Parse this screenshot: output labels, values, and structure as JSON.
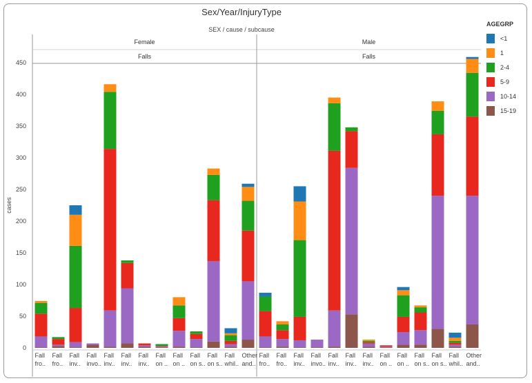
{
  "chart_data": {
    "type": "bar",
    "title": "Sex/Year/InjuryType",
    "subtitle": "SEX  /  cause  /  subcause",
    "ylabel": "cases",
    "ylim": [
      0,
      475
    ],
    "yticks": [
      0,
      50,
      100,
      150,
      200,
      250,
      300,
      350,
      400,
      450
    ],
    "legend_title": "AGEGRP",
    "legend_position": "right",
    "stack_order": [
      "15-19",
      "10-14",
      "5-9",
      "2-4",
      "1",
      "<1"
    ],
    "series": [
      {
        "name": "<1",
        "color": "#1f77b4"
      },
      {
        "name": "1",
        "color": "#ff8c14"
      },
      {
        "name": "2-4",
        "color": "#1fa01f"
      },
      {
        "name": "5-9",
        "color": "#e8281e"
      },
      {
        "name": "10-14",
        "color": "#9b68c4"
      },
      {
        "name": "15-19",
        "color": "#8c564b"
      }
    ],
    "panels": [
      {
        "sex": "Female",
        "cause": "Falls",
        "bars": [
          {
            "label": [
              "Fall",
              "fro.."
            ],
            "values": {
              "15-19": 1,
              "10-14": 17,
              "5-9": 36,
              "2-4": 17,
              "1": 3,
              "<1": 0
            }
          },
          {
            "label": [
              "Fall",
              "fro.."
            ],
            "values": {
              "15-19": 3,
              "10-14": 2,
              "5-9": 9,
              "2-4": 3,
              "1": 0,
              "<1": 0
            }
          },
          {
            "label": [
              "Fall",
              "inv.."
            ],
            "values": {
              "15-19": 1,
              "10-14": 8,
              "5-9": 54,
              "2-4": 98,
              "1": 49,
              "<1": 15
            }
          },
          {
            "label": [
              "Fall",
              "invo.."
            ],
            "values": {
              "15-19": 5,
              "10-14": 2,
              "5-9": 0,
              "2-4": 0,
              "1": 0,
              "<1": 0
            }
          },
          {
            "label": [
              "Fall",
              "inv.."
            ],
            "values": {
              "15-19": 2,
              "10-14": 57,
              "5-9": 255,
              "2-4": 90,
              "1": 12,
              "<1": 0
            }
          },
          {
            "label": [
              "Fall",
              "inv.."
            ],
            "values": {
              "15-19": 7,
              "10-14": 87,
              "5-9": 40,
              "2-4": 4,
              "1": 0,
              "<1": 0
            }
          },
          {
            "label": [
              "Fall",
              "inv.."
            ],
            "values": {
              "15-19": 2,
              "10-14": 2,
              "5-9": 3,
              "2-4": 0,
              "1": 0,
              "<1": 0
            }
          },
          {
            "label": [
              "Fall",
              "on .."
            ],
            "values": {
              "15-19": 1,
              "10-14": 1,
              "5-9": 1,
              "2-4": 3,
              "1": 0,
              "<1": 0
            }
          },
          {
            "label": [
              "Fall",
              "on .."
            ],
            "values": {
              "15-19": 2,
              "10-14": 25,
              "5-9": 20,
              "2-4": 20,
              "1": 13,
              "<1": 0
            }
          },
          {
            "label": [
              "Fall",
              "on s.."
            ],
            "values": {
              "15-19": 1,
              "10-14": 13,
              "5-9": 8,
              "2-4": 4,
              "1": 0,
              "<1": 0
            }
          },
          {
            "label": [
              "Fall",
              "on s.."
            ],
            "values": {
              "15-19": 10,
              "10-14": 127,
              "5-9": 96,
              "2-4": 40,
              "1": 10,
              "<1": 0
            }
          },
          {
            "label": [
              "Fall",
              "whil.."
            ],
            "values": {
              "15-19": 2,
              "10-14": 4,
              "5-9": 5,
              "2-4": 9,
              "1": 3,
              "<1": 8
            }
          },
          {
            "label": [
              "Other",
              "and.."
            ],
            "values": {
              "15-19": 13,
              "10-14": 92,
              "5-9": 80,
              "2-4": 47,
              "1": 22,
              "<1": 5
            }
          }
        ]
      },
      {
        "sex": "Male",
        "cause": "Falls",
        "bars": [
          {
            "label": [
              "Fall",
              "fro.."
            ],
            "values": {
              "15-19": 1,
              "10-14": 17,
              "5-9": 40,
              "2-4": 23,
              "1": 0,
              "<1": 6
            }
          },
          {
            "label": [
              "Fall",
              "fro.."
            ],
            "values": {
              "15-19": 2,
              "10-14": 12,
              "5-9": 14,
              "2-4": 9,
              "1": 5,
              "<1": 0
            }
          },
          {
            "label": [
              "Fall",
              "inv.."
            ],
            "values": {
              "15-19": 1,
              "10-14": 11,
              "5-9": 37,
              "2-4": 121,
              "1": 61,
              "<1": 24
            }
          },
          {
            "label": [
              "Fall",
              "invo.."
            ],
            "values": {
              "15-19": 1,
              "10-14": 12,
              "5-9": 0,
              "2-4": 0,
              "1": 0,
              "<1": 0
            }
          },
          {
            "label": [
              "Fall",
              "inv.."
            ],
            "values": {
              "15-19": 2,
              "10-14": 57,
              "5-9": 252,
              "2-4": 75,
              "1": 9,
              "<1": 0
            }
          },
          {
            "label": [
              "Fall",
              "inv.."
            ],
            "values": {
              "15-19": 53,
              "10-14": 231,
              "5-9": 58,
              "2-4": 6,
              "1": 0,
              "<1": 0
            }
          },
          {
            "label": [
              "Fall",
              "inv.."
            ],
            "values": {
              "15-19": 2,
              "10-14": 5,
              "5-9": 2,
              "2-4": 2,
              "1": 2,
              "<1": 0
            }
          },
          {
            "label": [
              "Fall",
              "on .."
            ],
            "values": {
              "15-19": 1,
              "10-14": 1,
              "5-9": 2,
              "2-4": 0,
              "1": 0,
              "<1": 0
            }
          },
          {
            "label": [
              "Fall",
              "on .."
            ],
            "values": {
              "15-19": 5,
              "10-14": 20,
              "5-9": 24,
              "2-4": 34,
              "1": 8,
              "<1": 5
            }
          },
          {
            "label": [
              "Fall",
              "on s.."
            ],
            "values": {
              "15-19": 5,
              "10-14": 23,
              "5-9": 28,
              "2-4": 8,
              "1": 3,
              "<1": 0
            }
          },
          {
            "label": [
              "Fall",
              "on s.."
            ],
            "values": {
              "15-19": 30,
              "10-14": 210,
              "5-9": 97,
              "2-4": 37,
              "1": 15,
              "<1": 0
            }
          },
          {
            "label": [
              "Fall",
              "whil.."
            ],
            "values": {
              "15-19": 2,
              "10-14": 3,
              "5-9": 3,
              "2-4": 3,
              "1": 5,
              "<1": 8
            }
          },
          {
            "label": [
              "Other",
              "and.."
            ],
            "values": {
              "15-19": 37,
              "10-14": 203,
              "5-9": 125,
              "2-4": 69,
              "1": 22,
              "<1": 3
            }
          }
        ]
      }
    ]
  }
}
